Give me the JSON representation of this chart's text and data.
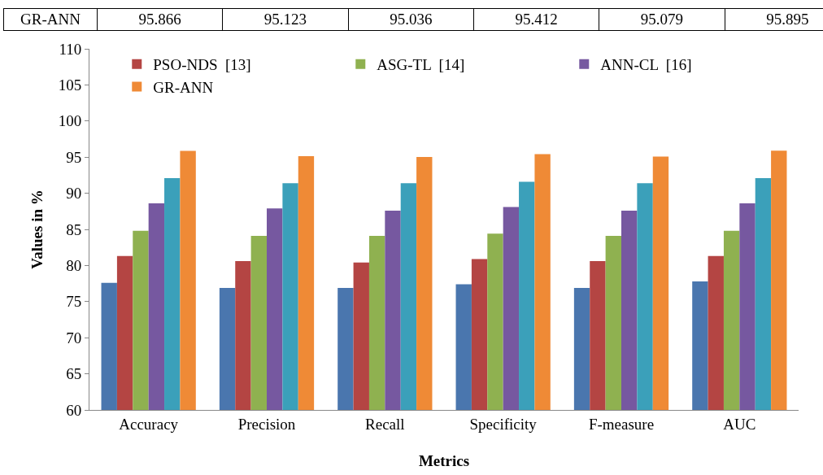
{
  "chart_data": {
    "type": "bar",
    "xlabel": "Metrics",
    "ylabel": "Values in %",
    "categories": [
      "Accuracy",
      "Precision",
      "Recall",
      "Specificity",
      "F-measure",
      "AUC"
    ],
    "series": [
      {
        "color": "#4a76ae",
        "values": [
          77.6,
          76.9,
          76.9,
          77.4,
          76.9,
          77.8
        ]
      },
      {
        "name": "PSO-NDS  [13]",
        "color": "#b44543",
        "values": [
          81.3,
          80.6,
          80.4,
          80.9,
          80.6,
          81.3
        ]
      },
      {
        "name": "ASG-TL  [14]",
        "color": "#8fb150",
        "values": [
          84.8,
          84.1,
          84.1,
          84.4,
          84.1,
          84.8
        ]
      },
      {
        "name": "ANN-CL  [16]",
        "color": "#7658a0",
        "values": [
          88.6,
          87.9,
          87.6,
          88.1,
          87.6,
          88.6
        ]
      },
      {
        "color": "#3ba0ba",
        "values": [
          92.1,
          91.4,
          91.4,
          91.6,
          91.4,
          92.1
        ]
      },
      {
        "name": "GR-ANN",
        "color": "#ef8a36",
        "values": [
          95.866,
          95.123,
          95.036,
          95.412,
          95.079,
          95.895
        ],
        "value_labels": [
          "95.866",
          "95.123",
          "95.036",
          "95.412",
          "95.079",
          "95.895"
        ]
      }
    ],
    "ylim": [
      60,
      110
    ],
    "yticks": [
      60,
      65,
      70,
      75,
      80,
      85,
      90,
      95,
      100,
      105,
      110
    ],
    "grid": false,
    "legend": "top right"
  }
}
